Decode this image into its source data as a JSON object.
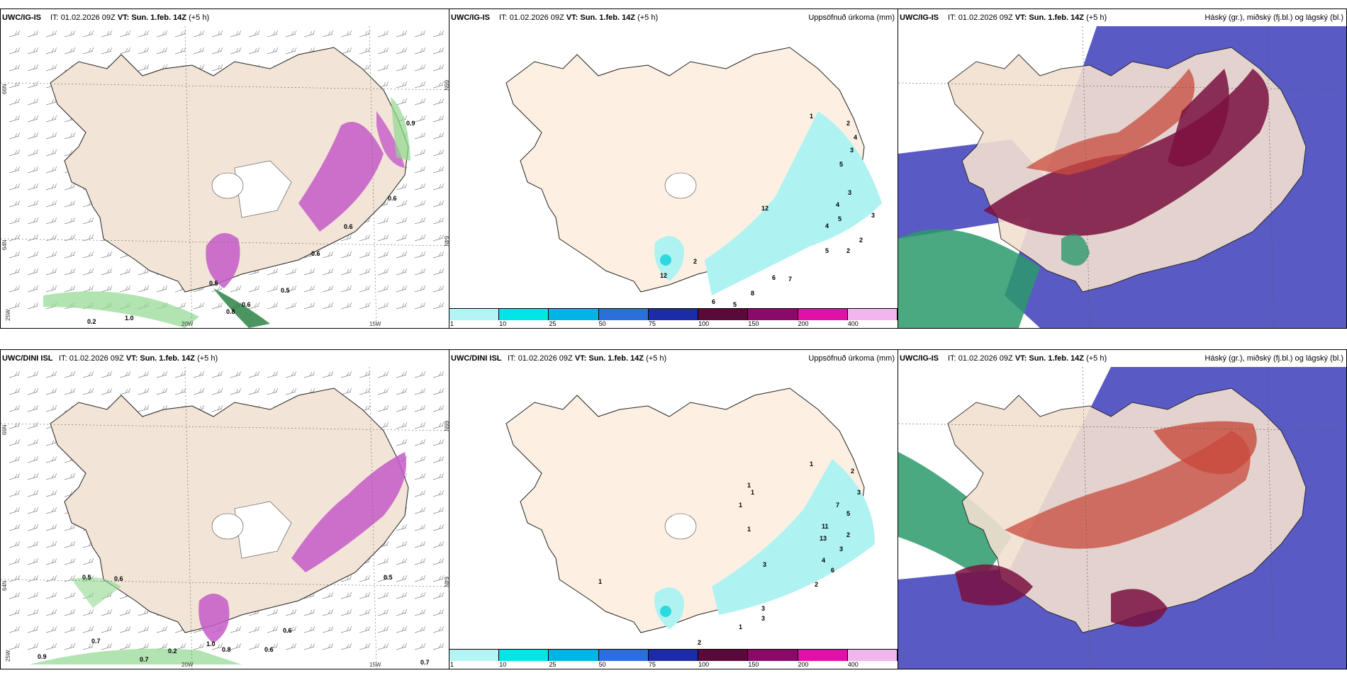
{
  "panels": [
    {
      "model": "UWC/IG-IS",
      "it_label": "IT:",
      "it_value": "01.02.2026 09Z",
      "vt_label": "VT:",
      "vt_value": "Sun. 1.feb. 14Z",
      "lead": "(+5 h)",
      "right_title": "",
      "axis_labels": [
        "66N",
        "64N",
        "25W",
        "20W",
        "15W",
        "66N",
        "64N"
      ],
      "contour_labels": [
        "0.9",
        "0.6",
        "0.6",
        "0.5",
        "0.5",
        "1.0",
        "0.8",
        "0.2",
        "0.6",
        "0.6"
      ]
    },
    {
      "model": "UWC/IG-IS",
      "it_label": "IT:",
      "it_value": "01.02.2026 09Z",
      "vt_label": "VT:",
      "vt_value": "Sun. 1.feb. 14Z",
      "lead": "(+5 h)",
      "right_title": "Uppsöfnuð úrkoma (mm)",
      "value_labels": [
        "1",
        "2",
        "4",
        "3",
        "5",
        "3",
        "4",
        "4",
        "5",
        "3",
        "2",
        "2",
        "5",
        "6",
        "7",
        "8",
        "6",
        "5",
        "2",
        "12",
        "12"
      ]
    },
    {
      "model": "UWC/IG-IS",
      "it_label": "IT:",
      "it_value": "01.02.2026 09Z",
      "vt_label": "VT:",
      "vt_value": "Sun. 1.feb. 14Z",
      "lead": "(+5 h)",
      "right_title": "Háský (gr.), miðský (fj.bl.) og lágský (bl.)"
    },
    {
      "model": "UWC/DINI ISL",
      "it_label": "IT:",
      "it_value": "01.02.2026 09Z",
      "vt_label": "VT:",
      "vt_value": "Sun. 1.feb. 14Z",
      "lead": "(+5 h)",
      "right_title": "",
      "axis_labels": [
        "66N",
        "64N",
        "25W",
        "20W",
        "15W",
        "66N",
        "64N"
      ],
      "contour_labels": [
        "0.5",
        "0.6",
        "0.7",
        "0.9",
        "0.7",
        "0.2",
        "1.0",
        "0.8",
        "0.6",
        "0.7",
        "0.6",
        "0.5"
      ]
    },
    {
      "model": "UWC/DINI ISL",
      "it_label": "IT:",
      "it_value": "01.02.2026 09Z",
      "vt_label": "VT:",
      "vt_value": "Sun. 1.feb. 14Z",
      "lead": "(+5 h)",
      "right_title": "Uppsöfnuð úrkoma (mm)",
      "value_labels": [
        "1",
        "1",
        "1",
        "1",
        "1",
        "2",
        "3",
        "7",
        "5",
        "11",
        "13",
        "3",
        "2",
        "4",
        "6",
        "3",
        "2",
        "3",
        "3",
        "1",
        "2",
        "1"
      ]
    },
    {
      "model": "UWC/IG-IS",
      "it_label": "IT:",
      "it_value": "01.02.2026 09Z",
      "vt_label": "VT:",
      "vt_value": "Sun. 1.feb. 14Z",
      "lead": "(+5 h)",
      "right_title": "Háský (gr.), miðský (fj.bl.) og lágský (bl.)"
    }
  ],
  "colorbar": {
    "ticks": [
      "1",
      "10",
      "25",
      "50",
      "75",
      "100",
      "150",
      "200",
      "400"
    ],
    "colors": [
      "#b3f5f5",
      "#00e5e5",
      "#00b4e6",
      "#2a6fdc",
      "#1c2ca8",
      "#5a0a3a",
      "#8a0a6a",
      "#e010a8",
      "#f2b6ee"
    ]
  },
  "colors": {
    "land": "#f7ece0",
    "land_light": "#fdf1e4",
    "cloud_high": "#5a5ac4",
    "cloud_mid": "#7a1040",
    "cloud_mid2": "#c84a3c",
    "cloud_low": "#2a9a6a",
    "precip_green": "#90d890",
    "precip_purple": "#b040c0",
    "rain_cyan": "#aef2f2"
  }
}
